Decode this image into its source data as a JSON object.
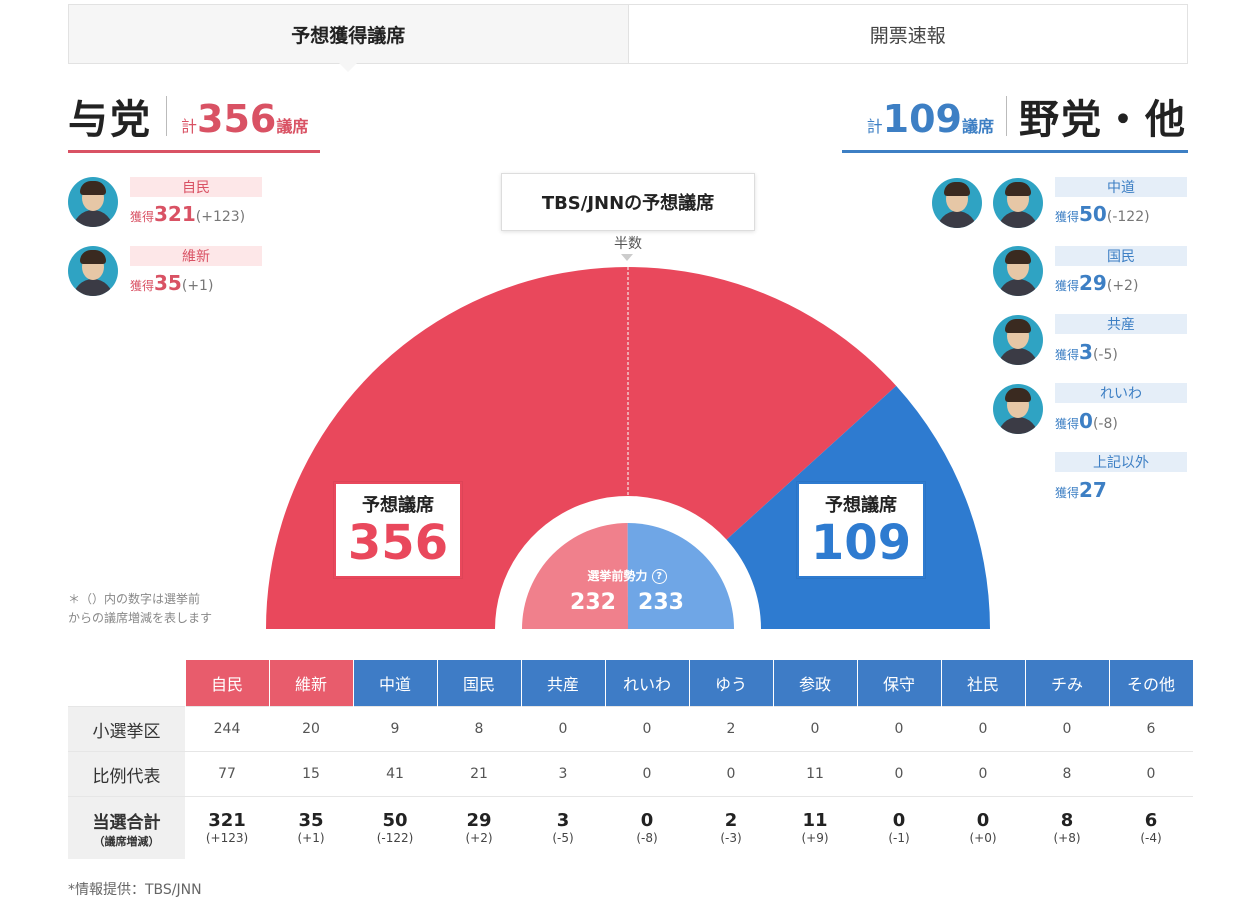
{
  "tabs": [
    {
      "label": "予想獲得議席",
      "active": true
    },
    {
      "label": "開票速報",
      "active": false
    }
  ],
  "ruling": {
    "name": "与党",
    "total_prefix": "計",
    "total": "356",
    "unit": "議席",
    "color": "#d95264",
    "parties": [
      {
        "name": "自民",
        "label": "獲得",
        "seats": "321",
        "diff": "(+123)"
      },
      {
        "name": "維新",
        "label": "獲得",
        "seats": "35",
        "diff": "(+1)"
      }
    ]
  },
  "opposition": {
    "name": "野党・他",
    "total_prefix": "計",
    "total": "109",
    "unit": "議席",
    "color": "#3d7fc4",
    "parties": [
      {
        "name": "中道",
        "label": "獲得",
        "seats": "50",
        "diff": "(-122)"
      },
      {
        "name": "国民",
        "label": "獲得",
        "seats": "29",
        "diff": "(+2)"
      },
      {
        "name": "共産",
        "label": "獲得",
        "seats": "3",
        "diff": "(-5)"
      },
      {
        "name": "れいわ",
        "label": "獲得",
        "seats": "0",
        "diff": "(-8)"
      },
      {
        "name": "上記以外",
        "label": "獲得",
        "seats": "27",
        "diff": ""
      }
    ]
  },
  "chart_data": {
    "type": "pie",
    "title": "TBS/JNNの予想議席",
    "shape": "semicircle",
    "majority_label": "半数",
    "majority_line": true,
    "slices": [
      {
        "name": "与党",
        "label": "予想議席",
        "value": 356,
        "color": "#e9485c"
      },
      {
        "name": "野党・他",
        "label": "予想議席",
        "value": 109,
        "color": "#2e7bd0"
      }
    ],
    "inner": {
      "label": "選挙前勢力",
      "help_icon": "question-circle-icon",
      "values": [
        232,
        233
      ],
      "colors": [
        "#f0808c",
        "#6fa6e6"
      ]
    }
  },
  "note": "＊（）内の数字は選挙前からの議席増減を表します",
  "note_lines": [
    "＊（）内の数字は選挙前",
    "からの議席増減を表します"
  ],
  "table": {
    "columns": [
      {
        "name": "自民",
        "color": "red"
      },
      {
        "name": "維新",
        "color": "red"
      },
      {
        "name": "中道",
        "color": "blue"
      },
      {
        "name": "国民",
        "color": "blue"
      },
      {
        "name": "共産",
        "color": "blue"
      },
      {
        "name": "れいわ",
        "color": "blue"
      },
      {
        "name": "ゆう",
        "color": "blue"
      },
      {
        "name": "参政",
        "color": "blue"
      },
      {
        "name": "保守",
        "color": "blue"
      },
      {
        "name": "社民",
        "color": "blue"
      },
      {
        "name": "チみ",
        "color": "blue"
      },
      {
        "name": "その他",
        "color": "blue"
      }
    ],
    "rows": [
      {
        "header": "小選挙区",
        "values": [
          "244",
          "20",
          "9",
          "8",
          "0",
          "0",
          "2",
          "0",
          "0",
          "0",
          "0",
          "6"
        ]
      },
      {
        "header": "比例代表",
        "values": [
          "77",
          "15",
          "41",
          "21",
          "3",
          "0",
          "0",
          "11",
          "0",
          "0",
          "8",
          "0"
        ]
      }
    ],
    "total_row": {
      "header": "当選合計",
      "subheader": "（議席増減）",
      "values": [
        "321",
        "35",
        "50",
        "29",
        "3",
        "0",
        "2",
        "11",
        "0",
        "0",
        "8",
        "6"
      ],
      "diffs": [
        "(+123)",
        "(+1)",
        "(-122)",
        "(+2)",
        "(-5)",
        "(-8)",
        "(-3)",
        "(+9)",
        "(-1)",
        "(+0)",
        "(+8)",
        "(-4)"
      ]
    }
  },
  "footer": "*情報提供：TBS/JNN"
}
